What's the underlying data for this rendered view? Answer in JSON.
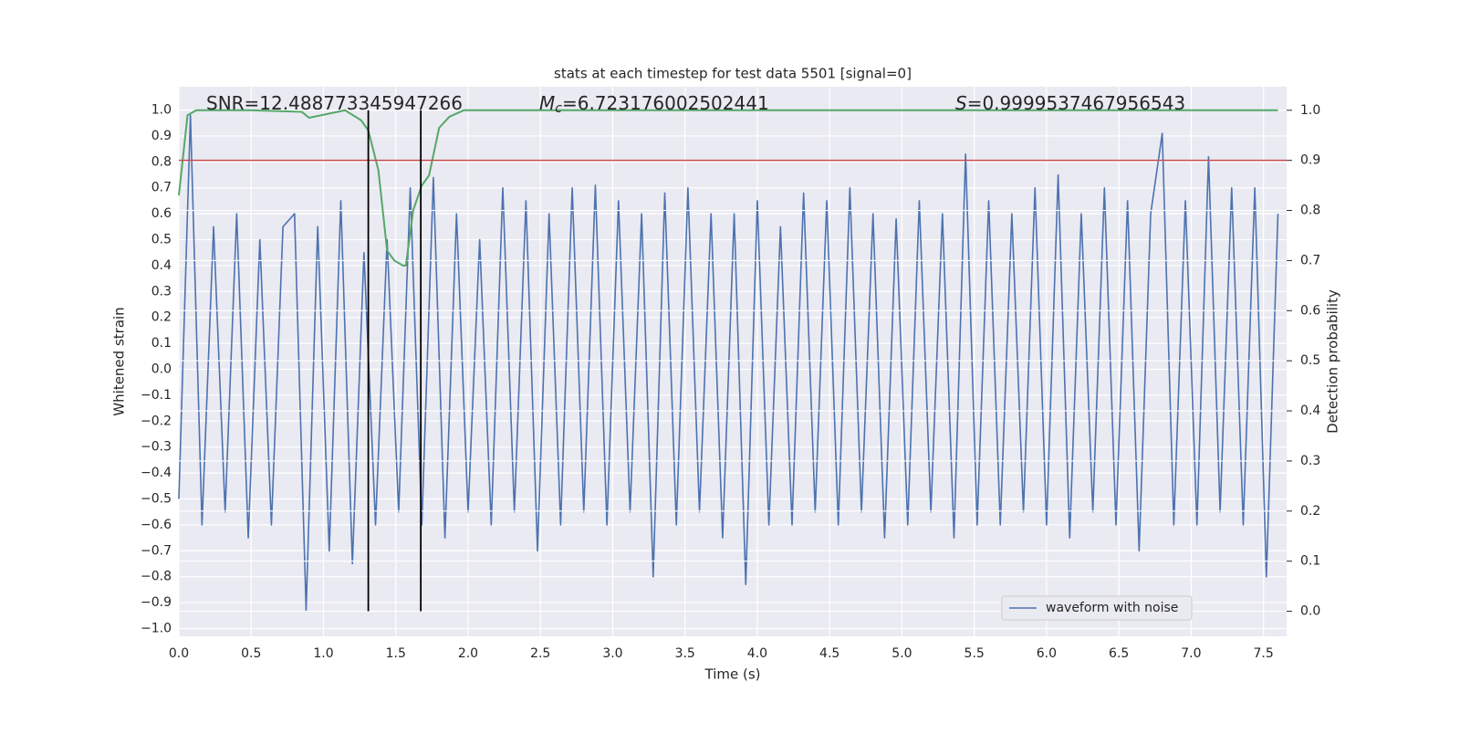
{
  "chart_data": {
    "type": "line",
    "title": "stats at each timestep for test data 5501 [signal=0]",
    "x_label": "Time (s)",
    "y_label": "Whitened strain",
    "y2_label": "Detection probability",
    "annotations": [
      {
        "text": "SNR=12.488773345947266"
      },
      {
        "symbol": "M",
        "subscript": "c",
        "text": "=6.723176002502441"
      },
      {
        "symbol": "S",
        "text": "=0.9999537467956543"
      }
    ],
    "xlim": [
      0,
      7.66
    ],
    "ylim": [
      -1.03,
      1.09
    ],
    "y2lim": [
      -0.05,
      1.047
    ],
    "xticks": [
      {
        "value": 0,
        "label": "0.0"
      },
      {
        "value": 0.5,
        "label": "0.5"
      },
      {
        "value": 1,
        "label": "1.0"
      },
      {
        "value": 1.5,
        "label": "1.5"
      },
      {
        "value": 2,
        "label": "2.0"
      },
      {
        "value": 2.5,
        "label": "2.5"
      },
      {
        "value": 3,
        "label": "3.0"
      },
      {
        "value": 3.5,
        "label": "3.5"
      },
      {
        "value": 4,
        "label": "4.0"
      },
      {
        "value": 4.5,
        "label": "4.5"
      },
      {
        "value": 5,
        "label": "5.0"
      },
      {
        "value": 5.5,
        "label": "5.5"
      },
      {
        "value": 6,
        "label": "6.0"
      },
      {
        "value": 6.5,
        "label": "6.5"
      },
      {
        "value": 7,
        "label": "7.0"
      },
      {
        "value": 7.5,
        "label": "7.5"
      }
    ],
    "yticks": [
      {
        "value": -1,
        "label": "−1.0"
      },
      {
        "value": -0.9,
        "label": "−0.9"
      },
      {
        "value": -0.8,
        "label": "−0.8"
      },
      {
        "value": -0.7,
        "label": "−0.7"
      },
      {
        "value": -0.6,
        "label": "−0.6"
      },
      {
        "value": -0.5,
        "label": "−0.5"
      },
      {
        "value": -0.4,
        "label": "−0.4"
      },
      {
        "value": -0.3,
        "label": "−0.3"
      },
      {
        "value": -0.2,
        "label": "−0.2"
      },
      {
        "value": -0.1,
        "label": "−0.1"
      },
      {
        "value": 0,
        "label": "0.0"
      },
      {
        "value": 0.1,
        "label": "0.1"
      },
      {
        "value": 0.2,
        "label": "0.2"
      },
      {
        "value": 0.3,
        "label": "0.3"
      },
      {
        "value": 0.4,
        "label": "0.4"
      },
      {
        "value": 0.5,
        "label": "0.5"
      },
      {
        "value": 0.6,
        "label": "0.6"
      },
      {
        "value": 0.7,
        "label": "0.7"
      },
      {
        "value": 0.8,
        "label": "0.8"
      },
      {
        "value": 0.9,
        "label": "0.9"
      },
      {
        "value": 1,
        "label": "1.0"
      }
    ],
    "y2ticks": [
      {
        "value": 0,
        "label": "0.0"
      },
      {
        "value": 0.1,
        "label": "0.1"
      },
      {
        "value": 0.2,
        "label": "0.2"
      },
      {
        "value": 0.3,
        "label": "0.3"
      },
      {
        "value": 0.4,
        "label": "0.4"
      },
      {
        "value": 0.5,
        "label": "0.5"
      },
      {
        "value": 0.6,
        "label": "0.6"
      },
      {
        "value": 0.7,
        "label": "0.7"
      },
      {
        "value": 0.8,
        "label": "0.8"
      },
      {
        "value": 0.9,
        "label": "0.9"
      },
      {
        "value": 1,
        "label": "1.0"
      }
    ],
    "grid": true,
    "legend": "lower right",
    "series": [
      {
        "name": "waveform with noise",
        "color": "#4c72b0",
        "x": [
          0,
          0.08,
          0.16,
          0.24,
          0.32,
          0.4,
          0.48,
          0.56,
          0.64,
          0.72,
          0.8,
          0.88,
          0.96,
          1.04,
          1.12,
          1.2,
          1.28,
          1.36,
          1.44,
          1.52,
          1.6,
          1.68,
          1.76,
          1.84,
          1.92,
          2,
          2.08,
          2.16,
          2.24,
          2.32,
          2.4,
          2.48,
          2.56,
          2.64,
          2.72,
          2.8,
          2.88,
          2.96,
          3.04,
          3.12,
          3.2,
          3.28,
          3.36,
          3.44,
          3.52,
          3.6,
          3.68,
          3.76,
          3.84,
          3.92,
          4,
          4.08,
          4.16,
          4.24,
          4.32,
          4.4,
          4.48,
          4.56,
          4.64,
          4.72,
          4.8,
          4.88,
          4.96,
          5.04,
          5.12,
          5.2,
          5.28,
          5.36,
          5.44,
          5.52,
          5.6,
          5.68,
          5.76,
          5.84,
          5.92,
          6,
          6.08,
          6.16,
          6.24,
          6.32,
          6.4,
          6.48,
          6.56,
          6.64,
          6.72,
          6.8,
          6.88,
          6.96,
          7.04,
          7.12,
          7.2,
          7.28,
          7.36,
          7.44,
          7.52,
          7.6
        ],
        "values": [
          -0.5,
          0.98,
          -0.6,
          0.55,
          -0.55,
          0.6,
          -0.65,
          0.5,
          -0.6,
          0.55,
          0.6,
          -0.93,
          0.55,
          -0.7,
          0.65,
          -0.75,
          0.45,
          -0.6,
          0.5,
          -0.55,
          0.7,
          -0.6,
          0.74,
          -0.65,
          0.6,
          -0.55,
          0.5,
          -0.6,
          0.7,
          -0.55,
          0.65,
          -0.7,
          0.6,
          -0.6,
          0.7,
          -0.55,
          0.71,
          -0.6,
          0.65,
          -0.55,
          0.6,
          -0.8,
          0.68,
          -0.6,
          0.7,
          -0.55,
          0.6,
          -0.65,
          0.6,
          -0.83,
          0.65,
          -0.6,
          0.55,
          -0.6,
          0.68,
          -0.55,
          0.65,
          -0.6,
          0.7,
          -0.55,
          0.6,
          -0.65,
          0.58,
          -0.6,
          0.65,
          -0.55,
          0.6,
          -0.65,
          0.83,
          -0.6,
          0.65,
          -0.6,
          0.6,
          -0.55,
          0.7,
          -0.6,
          0.75,
          -0.65,
          0.6,
          -0.55,
          0.7,
          -0.6,
          0.65,
          -0.7,
          0.6,
          0.91,
          -0.6,
          0.65,
          -0.6,
          0.82,
          -0.55,
          0.7,
          -0.6,
          0.7,
          -0.8,
          0.6
        ]
      },
      {
        "color": "#55a868",
        "axis": "y2",
        "x": [
          0,
          0.06,
          0.12,
          0.5,
          0.85,
          0.9,
          1.15,
          1.26,
          1.31,
          1.38,
          1.44,
          1.49,
          1.55,
          1.57,
          1.62,
          1.68,
          1.73,
          1.8,
          1.87,
          1.97,
          2.5,
          7.6
        ],
        "values": [
          0.83,
          0.99,
          1.0,
          1.0,
          0.997,
          0.985,
          1.0,
          0.98,
          0.96,
          0.88,
          0.72,
          0.7,
          0.69,
          0.69,
          0.8,
          0.85,
          0.87,
          0.965,
          0.987,
          1.0,
          1.0,
          1.0
        ]
      }
    ],
    "hlines": [
      {
        "value": 0.9,
        "axis": "y2",
        "color": "#c44e52"
      }
    ],
    "vlines": [
      {
        "x": 1.31,
        "span": [
          0,
          1
        ],
        "axis": "y2",
        "color": "#000000"
      },
      {
        "x": 1.673,
        "span": [
          0,
          1
        ],
        "axis": "y2",
        "color": "#000000"
      }
    ]
  }
}
